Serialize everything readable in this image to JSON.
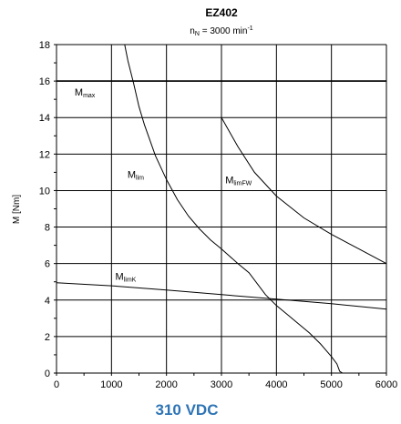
{
  "chart_data": {
    "type": "line",
    "title": "EZ402",
    "subtitle": {
      "prefix": "n",
      "sub": "N",
      "mid": " = 3000 min",
      "sup": "-1"
    },
    "ylabel": "M [Nm]",
    "xlabel": "",
    "xlim": [
      0,
      6000
    ],
    "ylim": [
      0,
      18
    ],
    "xticks": [
      0,
      1000,
      2000,
      3000,
      4000,
      5000,
      6000
    ],
    "yticks": [
      0,
      2,
      4,
      6,
      8,
      10,
      12,
      14,
      16,
      18
    ],
    "grid": true,
    "series": [
      {
        "id": "mmax",
        "label_main": "M",
        "label_sub": "max",
        "label_pos": [
          330,
          15.2
        ],
        "points": [
          [
            0,
            16
          ],
          [
            6000,
            16
          ]
        ]
      },
      {
        "id": "mlim",
        "label_main": "M",
        "label_sub": "lim",
        "label_pos": [
          1290,
          10.7
        ],
        "points": [
          [
            1240,
            18
          ],
          [
            1300,
            17.1
          ],
          [
            1400,
            15.9
          ],
          [
            1500,
            14.6
          ],
          [
            1600,
            13.6
          ],
          [
            1800,
            11.9
          ],
          [
            2000,
            10.6
          ],
          [
            2200,
            9.5
          ],
          [
            2400,
            8.6
          ],
          [
            2600,
            7.9
          ],
          [
            2800,
            7.3
          ],
          [
            3000,
            6.8
          ],
          [
            3300,
            6.0
          ],
          [
            3500,
            5.5
          ],
          [
            3800,
            4.3
          ],
          [
            4000,
            3.7
          ],
          [
            4200,
            3.2
          ],
          [
            4400,
            2.7
          ],
          [
            4600,
            2.2
          ],
          [
            4800,
            1.6
          ],
          [
            5000,
            0.9
          ],
          [
            5100,
            0.5
          ],
          [
            5150,
            0.1
          ],
          [
            5200,
            0.0
          ]
        ]
      },
      {
        "id": "mlimfw",
        "label_main": "M",
        "label_sub": "limFW",
        "label_pos": [
          3070,
          10.4
        ],
        "points": [
          [
            3000,
            14
          ],
          [
            3300,
            12.4
          ],
          [
            3600,
            11.0
          ],
          [
            4000,
            9.7
          ],
          [
            4500,
            8.5
          ],
          [
            5000,
            7.6
          ],
          [
            5500,
            6.8
          ],
          [
            6000,
            6.0
          ]
        ]
      },
      {
        "id": "mlimk",
        "label_main": "M",
        "label_sub": "limK",
        "label_pos": [
          1070,
          5.1
        ],
        "points": [
          [
            0,
            4.95
          ],
          [
            1000,
            4.78
          ],
          [
            2000,
            4.55
          ],
          [
            3000,
            4.3
          ],
          [
            4000,
            4.05
          ],
          [
            5000,
            3.8
          ],
          [
            6000,
            3.5
          ]
        ]
      }
    ],
    "footer": "310 VDC"
  }
}
